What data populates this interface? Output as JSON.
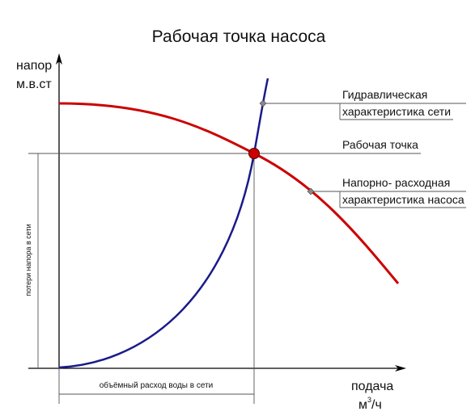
{
  "title": "Рабочая точка насоса",
  "y_axis": {
    "label_line1": "напор",
    "label_line2": "м.в.ст"
  },
  "x_axis": {
    "label_line1": "подача",
    "unit_base": "м",
    "unit_sup": "3",
    "unit_rest": "/ч"
  },
  "annotations": {
    "network_line1": "Гидравлическая",
    "network_line2": "характеристика сети",
    "operating_point": "Рабочая точка",
    "pump_line1": "Напорно- расходная",
    "pump_line2": "характеристика насоса",
    "head_loss": "потери напора в сети",
    "volume_flow": "объёмный расход воды в сети"
  },
  "colors": {
    "pump_curve": "#cc0000",
    "network_curve": "#1a1a8c",
    "operating_point": "#cc0000",
    "axes": "#000000",
    "guides": "#555555"
  }
}
